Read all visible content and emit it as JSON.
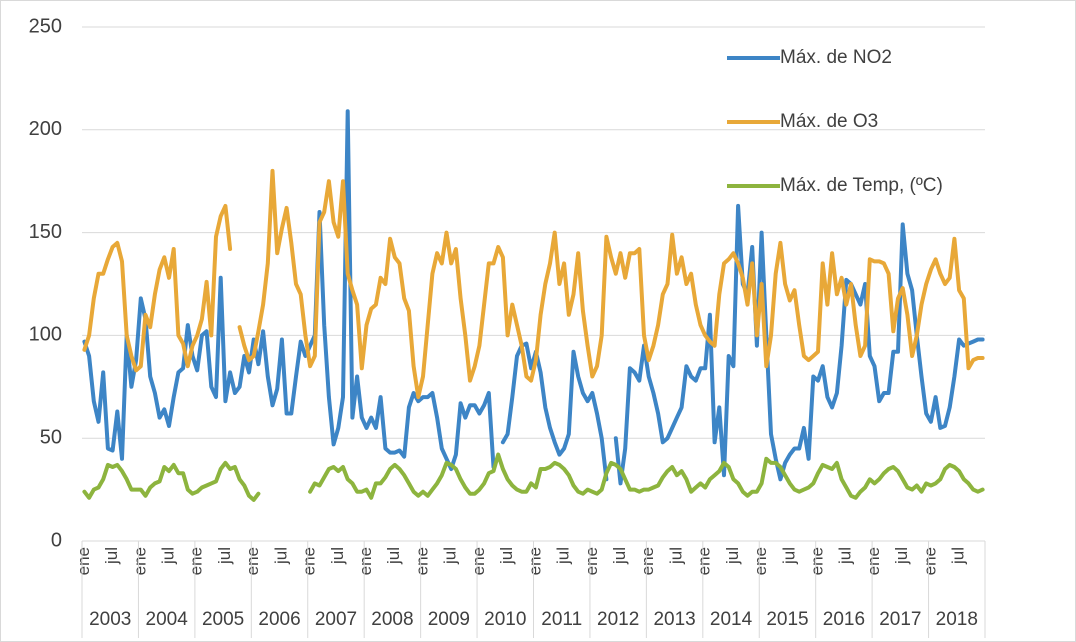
{
  "chart_data": {
    "type": "line",
    "categories": [
      "ene",
      null,
      null,
      null,
      null,
      null,
      "jul",
      null,
      null,
      null,
      null,
      null,
      "ene",
      null,
      null,
      null,
      null,
      null,
      "jul",
      null,
      null,
      null,
      null,
      null,
      "ene",
      null,
      null,
      null,
      null,
      null,
      "jul",
      null,
      null,
      null,
      null,
      null,
      "ene",
      null,
      null,
      null,
      null,
      null,
      "jul",
      null,
      null,
      null,
      null,
      null,
      "ene",
      null,
      null,
      null,
      null,
      null,
      "jul",
      null,
      null,
      null,
      null,
      null,
      "ene",
      null,
      null,
      null,
      null,
      null,
      "jul",
      null,
      null,
      null,
      null,
      null,
      "ene",
      null,
      null,
      null,
      null,
      null,
      "jul",
      null,
      null,
      null,
      null,
      null,
      "ene",
      null,
      null,
      null,
      null,
      null,
      "jul",
      null,
      null,
      null,
      null,
      null,
      "ene",
      null,
      null,
      null,
      null,
      null,
      "jul",
      null,
      null,
      null,
      null,
      null,
      "ene",
      null,
      null,
      null,
      null,
      null,
      "jul",
      null,
      null,
      null,
      null,
      null,
      "ene",
      null,
      null,
      null,
      null,
      null,
      "jul",
      null,
      null,
      null,
      null,
      null,
      "ene",
      null,
      null,
      null,
      null,
      null,
      "jul",
      null,
      null,
      null,
      null,
      null,
      "ene",
      null,
      null,
      null,
      null,
      null,
      "jul",
      null,
      null,
      null,
      null,
      null,
      "ene",
      null,
      null,
      null,
      null,
      null,
      "jul",
      null,
      null,
      null,
      null,
      null,
      "ene",
      null,
      null,
      null,
      null,
      null,
      "jul",
      null,
      null,
      null,
      null,
      null,
      "ene",
      null,
      null,
      null,
      null,
      null,
      "jul",
      null,
      null,
      null,
      null,
      null
    ],
    "x_groups": [
      "2003",
      "2004",
      "2005",
      "2006",
      "2007",
      "2008",
      "2009",
      "2010",
      "2011",
      "2012",
      "2013",
      "2014",
      "2015",
      "2016",
      "2017",
      "2018"
    ],
    "series": [
      {
        "name": "Máx. de NO2",
        "color": "#3d85c6",
        "values": [
          97,
          90,
          68,
          58,
          82,
          45,
          44,
          63,
          40,
          100,
          75,
          88,
          118,
          108,
          80,
          72,
          60,
          64,
          56,
          70,
          82,
          84,
          105,
          90,
          83,
          100,
          102,
          75,
          70,
          128,
          68,
          82,
          72,
          75,
          90,
          82,
          98,
          86,
          102,
          80,
          66,
          74,
          98,
          62,
          62,
          80,
          97,
          90,
          95,
          100,
          160,
          105,
          70,
          47,
          55,
          70,
          209,
          60,
          80,
          60,
          55,
          60,
          55,
          70,
          45,
          43,
          43,
          44,
          41,
          65,
          72,
          68,
          70,
          70,
          72,
          60,
          45,
          40,
          35,
          42,
          67,
          60,
          66,
          66,
          62,
          66,
          72,
          36,
          null,
          48,
          52,
          70,
          90,
          95,
          96,
          84,
          92,
          82,
          65,
          55,
          48,
          42,
          45,
          52,
          92,
          80,
          72,
          68,
          72,
          62,
          50,
          30,
          null,
          50,
          28,
          45,
          84,
          82,
          78,
          95,
          80,
          72,
          62,
          48,
          50,
          55,
          60,
          65,
          85,
          80,
          78,
          84,
          84,
          110,
          48,
          65,
          32,
          90,
          85,
          163,
          125,
          120,
          143,
          95,
          150,
          100,
          52,
          40,
          30,
          38,
          42,
          45,
          45,
          55,
          40,
          80,
          78,
          85,
          70,
          65,
          72,
          95,
          127,
          125,
          120,
          115,
          125,
          90,
          85,
          68,
          72,
          72,
          92,
          92,
          154,
          130,
          122,
          100,
          80,
          62,
          58,
          70,
          55,
          56,
          65,
          80,
          98,
          95,
          96,
          97,
          98,
          98
        ]
      },
      {
        "name": "Máx. de O3",
        "color": "#e8a838",
        "values": [
          93,
          100,
          118,
          130,
          130,
          137,
          143,
          145,
          136,
          100,
          90,
          83,
          85,
          110,
          104,
          120,
          132,
          138,
          128,
          142,
          100,
          96,
          85,
          95,
          100,
          108,
          126,
          100,
          148,
          158,
          163,
          142,
          null,
          104,
          95,
          88,
          90,
          102,
          115,
          135,
          180,
          140,
          152,
          162,
          145,
          125,
          120,
          100,
          85,
          90,
          155,
          160,
          175,
          155,
          148,
          175,
          130,
          122,
          115,
          84,
          105,
          113,
          115,
          128,
          125,
          147,
          138,
          135,
          118,
          112,
          85,
          70,
          80,
          105,
          130,
          140,
          135,
          150,
          135,
          142,
          118,
          100,
          78,
          85,
          95,
          115,
          135,
          135,
          143,
          138,
          100,
          115,
          105,
          95,
          80,
          78,
          88,
          110,
          125,
          135,
          150,
          125,
          135,
          110,
          120,
          140,
          112,
          95,
          80,
          85,
          100,
          148,
          138,
          130,
          140,
          128,
          140,
          140,
          142,
          100,
          88,
          95,
          105,
          120,
          125,
          149,
          130,
          138,
          125,
          130,
          115,
          105,
          100,
          97,
          95,
          120,
          135,
          137,
          140,
          135,
          128,
          115,
          135,
          100,
          125,
          85,
          100,
          130,
          145,
          125,
          117,
          122,
          105,
          90,
          88,
          90,
          92,
          135,
          115,
          140,
          120,
          128,
          115,
          125,
          105,
          90,
          95,
          137,
          136,
          136,
          135,
          130,
          102,
          118,
          123,
          110,
          90,
          100,
          115,
          125,
          132,
          137,
          130,
          125,
          128,
          147,
          122,
          118,
          84,
          88,
          89,
          89
        ]
      },
      {
        "name": "Máx. de Temp, (ºC)",
        "color": "#8db43e",
        "values": [
          24,
          21,
          25,
          26,
          30,
          37,
          36,
          37,
          34,
          30,
          25,
          25,
          25,
          22,
          26,
          28,
          29,
          36,
          34,
          37,
          33,
          33,
          25,
          23,
          24,
          26,
          27,
          28,
          29,
          35,
          38,
          35,
          36,
          30,
          27,
          22,
          20,
          23,
          null,
          null,
          null,
          null,
          null,
          null,
          null,
          null,
          null,
          null,
          24,
          28,
          27,
          31,
          35,
          36,
          34,
          36,
          30,
          28,
          24,
          24,
          25,
          21,
          28,
          28,
          31,
          35,
          37,
          35,
          32,
          28,
          24,
          22,
          24,
          22,
          25,
          28,
          32,
          38,
          37,
          35,
          30,
          26,
          23,
          23,
          25,
          28,
          33,
          34,
          42,
          35,
          30,
          27,
          25,
          24,
          24,
          28,
          26,
          35,
          35,
          36,
          38,
          37,
          35,
          32,
          27,
          24,
          23,
          25,
          24,
          23,
          25,
          33,
          38,
          37,
          35,
          30,
          25,
          25,
          24,
          25,
          25,
          26,
          27,
          31,
          34,
          36,
          32,
          34,
          30,
          24,
          26,
          28,
          26,
          30,
          32,
          34,
          38,
          36,
          30,
          28,
          24,
          22,
          24,
          24,
          28,
          40,
          38,
          38,
          36,
          32,
          28,
          25,
          24,
          25,
          26,
          28,
          33,
          37,
          36,
          35,
          38,
          30,
          26,
          22,
          21,
          24,
          26,
          30,
          28,
          30,
          33,
          35,
          36,
          34,
          30,
          26,
          25,
          27,
          24,
          28,
          27,
          28,
          30,
          35,
          37,
          36,
          34,
          30,
          28,
          25,
          24,
          25
        ]
      }
    ],
    "ylim": [
      0,
      250
    ],
    "yticks": [
      0,
      50,
      100,
      150,
      200,
      250
    ],
    "grid": true,
    "legend": "top-right"
  }
}
